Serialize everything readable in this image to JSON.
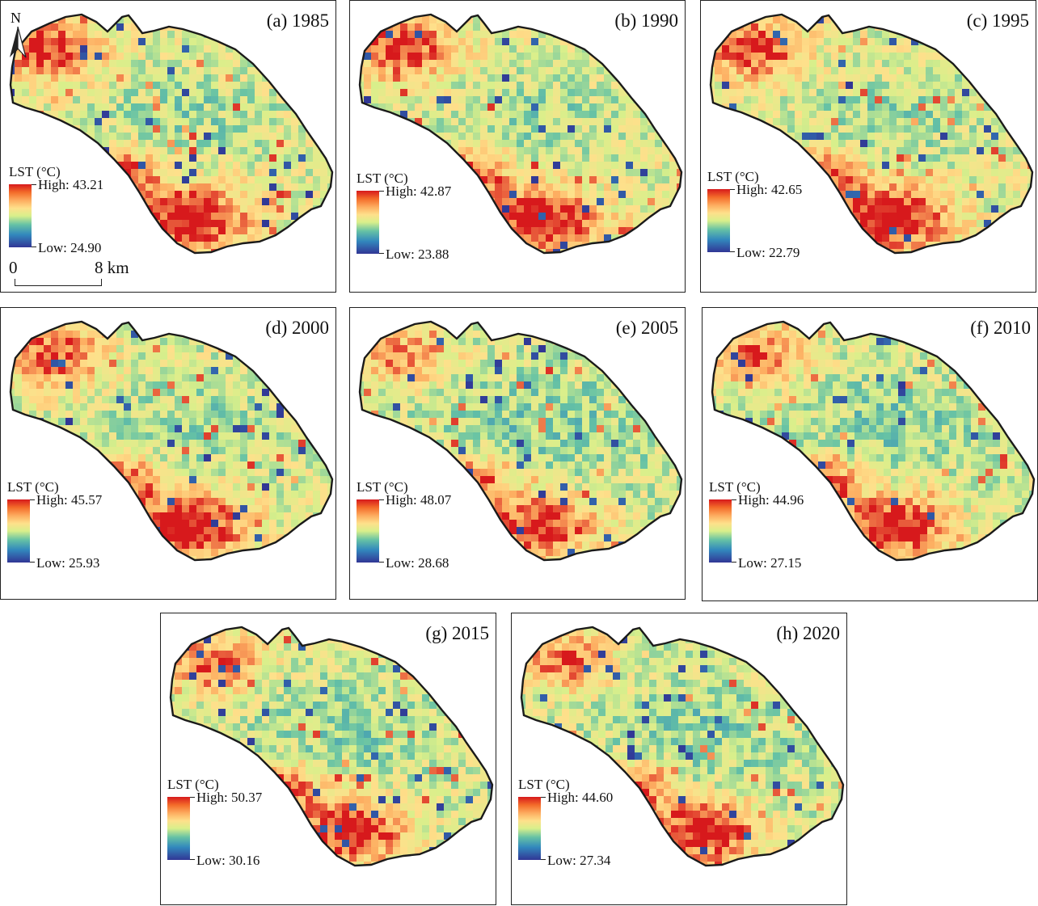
{
  "legend_title": "LST (°C)",
  "color_ramp": [
    "#d7191c",
    "#fdae61",
    "#fee08b",
    "#d9ef8b",
    "#66c2a5",
    "#3288bd",
    "#313695"
  ],
  "panels": [
    {
      "id": "a",
      "title": "(a) 1985",
      "high": "High: 43.21",
      "low": "Low: 24.90",
      "warmth": 0.55
    },
    {
      "id": "b",
      "title": "(b) 1990",
      "high": "High: 42.87",
      "low": "Low: 23.88",
      "warmth": 0.55
    },
    {
      "id": "c",
      "title": "(c) 1995",
      "high": "High: 42.65",
      "low": "Low: 22.79",
      "warmth": 0.55
    },
    {
      "id": "d",
      "title": "(d) 2000",
      "high": "High: 45.57",
      "low": "Low: 25.93",
      "warmth": 0.5
    },
    {
      "id": "e",
      "title": "(e) 2005",
      "high": "High: 48.07",
      "low": "Low: 28.68",
      "warmth": 0.35
    },
    {
      "id": "f",
      "title": "(f) 2010",
      "high": "High: 44.96",
      "low": "Low: 27.15",
      "warmth": 0.4
    },
    {
      "id": "g",
      "title": "(g) 2015",
      "high": "High: 50.37",
      "low": "Low: 30.16",
      "warmth": 0.42
    },
    {
      "id": "h",
      "title": "(h) 2020",
      "high": "High: 44.60",
      "low": "Low: 27.34",
      "warmth": 0.4
    }
  ],
  "north_arrow": {
    "label": "N",
    "icon": "north-arrow-icon"
  },
  "scale_bar": {
    "start": "0",
    "end": "8 km"
  }
}
